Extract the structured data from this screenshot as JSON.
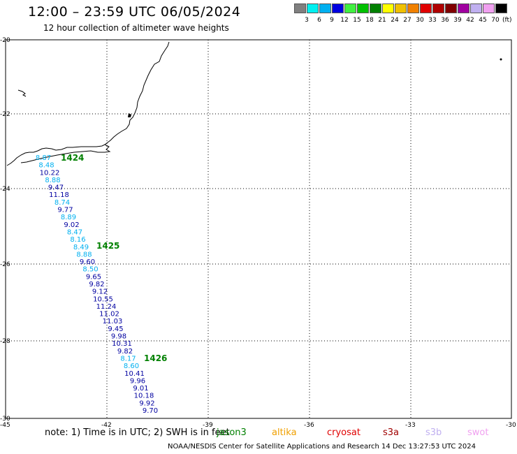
{
  "header": {
    "title": "12:00 – 23:59 UTC 06/05/2024",
    "subtitle": "12 hour collection of altimeter wave heights"
  },
  "legend": {
    "bins": [
      {
        "label": "3",
        "color": "#808080"
      },
      {
        "label": "6",
        "color": "#00f0f0"
      },
      {
        "label": "9",
        "color": "#00b0f0"
      },
      {
        "label": "12",
        "color": "#0000e0"
      },
      {
        "label": "15",
        "color": "#40f040"
      },
      {
        "label": "18",
        "color": "#00c000"
      },
      {
        "label": "21",
        "color": "#008000"
      },
      {
        "label": "24",
        "color": "#ffff00"
      },
      {
        "label": "27",
        "color": "#f0c000"
      },
      {
        "label": "30",
        "color": "#f08000"
      },
      {
        "label": "33",
        "color": "#e00000"
      },
      {
        "label": "36",
        "color": "#b00000"
      },
      {
        "label": "39",
        "color": "#800000"
      },
      {
        "label": "42",
        "color": "#a000a0"
      },
      {
        "label": "45",
        "color": "#c0b0f0"
      },
      {
        "label": "70",
        "color": "#f0a0f0"
      },
      {
        "label": "",
        "color": "#000000"
      }
    ],
    "unit": "(ft)"
  },
  "axes": {
    "lat_labels": [
      "-20",
      "-22",
      "-24",
      "-26",
      "-28",
      "-30"
    ],
    "lon_labels": [
      "-45",
      "-42",
      "-39",
      "-36",
      "-33",
      "-30"
    ]
  },
  "track": {
    "heights": [
      "8.87",
      "8.48",
      "10.22",
      "8.88",
      "9.47",
      "11.18",
      "8.74",
      "9.77",
      "8.89",
      "9.02",
      "8.47",
      "8.16",
      "8.49",
      "8.88",
      "9.60",
      "8.50",
      "9.65",
      "9.82",
      "9.12",
      "10.55",
      "11.24",
      "11.02",
      "11.03",
      "9.45",
      "9.98",
      "10.31",
      "9.82",
      "8.17",
      "8.60",
      "10.41",
      "9.96",
      "9.01",
      "10.18",
      "9.92",
      "9.70"
    ],
    "colors": {
      "cyan": "#00b0f0",
      "navy": "#0000a0"
    },
    "times": [
      "1424",
      "1425",
      "1426"
    ],
    "time_color": "#008000"
  },
  "footer": {
    "note": "note:  1) Time is in UTC; 2) SWH is in feet",
    "satellites": [
      {
        "name": "jason3",
        "color": "#008000"
      },
      {
        "name": "altika",
        "color": "#f0a000"
      },
      {
        "name": "cryosat",
        "color": "#e00000"
      },
      {
        "name": "s3a",
        "color": "#a00000"
      },
      {
        "name": "s3b",
        "color": "#c0b0f0"
      },
      {
        "name": "swot",
        "color": "#f0a0f0"
      }
    ],
    "credit": "NOAA/NESDIS Center for Satellite Applications and Research    14 Dec 13:27:53 UTC 2024"
  }
}
